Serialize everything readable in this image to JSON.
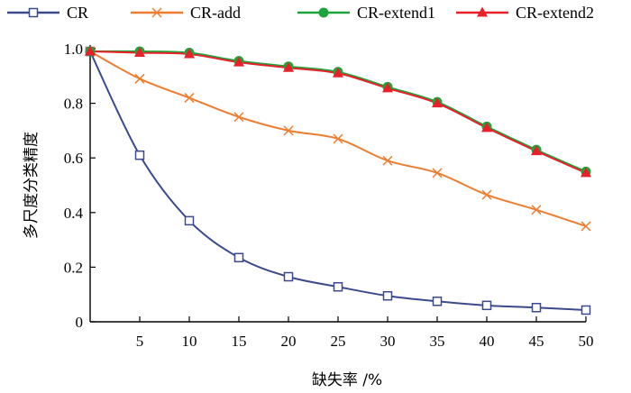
{
  "chart_data": {
    "type": "line",
    "x": [
      0,
      5,
      10,
      15,
      20,
      25,
      30,
      35,
      40,
      45,
      50
    ],
    "x_tick_labels": [
      "5",
      "10",
      "15",
      "20",
      "25",
      "30",
      "35",
      "40",
      "45",
      "50"
    ],
    "y_ticks": [
      0,
      0.2,
      0.4,
      0.6,
      0.8,
      1.0
    ],
    "y_tick_labels": [
      "0",
      "0.2",
      "0.4",
      "0.6",
      "0.8",
      "1.0"
    ],
    "xlim": [
      0,
      50
    ],
    "ylim": [
      0,
      1.0
    ],
    "xlabel": "缺失率 /%",
    "ylabel": "多尺度分类精度",
    "legend_position": "top",
    "grid": false,
    "series": [
      {
        "name": "CR",
        "color": "#3a4a8c",
        "marker": "square",
        "values": [
          0.99,
          0.61,
          0.37,
          0.235,
          0.165,
          0.128,
          0.095,
          0.075,
          0.06,
          0.052,
          0.043
        ]
      },
      {
        "name": "CR-add",
        "color": "#ed7d31",
        "marker": "x",
        "values": [
          0.99,
          0.89,
          0.82,
          0.75,
          0.7,
          0.67,
          0.59,
          0.545,
          0.465,
          0.41,
          0.35
        ]
      },
      {
        "name": "CR-extend1",
        "color": "#1fa33a",
        "marker": "circle",
        "values": [
          0.99,
          0.99,
          0.985,
          0.955,
          0.935,
          0.915,
          0.86,
          0.805,
          0.715,
          0.63,
          0.55
        ]
      },
      {
        "name": "CR-extend2",
        "color": "#e8202a",
        "marker": "triangle",
        "values": [
          0.99,
          0.985,
          0.98,
          0.95,
          0.93,
          0.91,
          0.855,
          0.8,
          0.71,
          0.625,
          0.545
        ]
      }
    ]
  }
}
